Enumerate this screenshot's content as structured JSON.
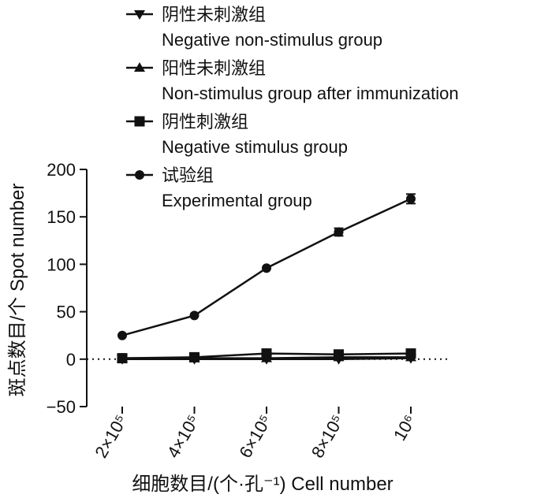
{
  "chart_data": {
    "type": "line",
    "xlabel": "细胞数目/(个·孔⁻¹)  Cell number",
    "ylabel": "斑点数目/个 Spot number",
    "categories": [
      "2×10⁵",
      "4×10⁵",
      "6×10⁵",
      "8×10⁵",
      "10⁶"
    ],
    "ylim": [
      -50,
      200
    ],
    "yticks": [
      -50,
      0,
      50,
      100,
      150,
      200
    ],
    "zero_line": "dotted",
    "grid": false,
    "legend_position": "top-left",
    "series": [
      {
        "name": "阴性未刺激组",
        "name_en": "Negative non-stimulus group",
        "marker": "triangle-down",
        "values": [
          0,
          0,
          0,
          0,
          1
        ]
      },
      {
        "name": "阳性未刺激组",
        "name_en": "Non-stimulus group after immunization",
        "marker": "triangle-up",
        "values": [
          1,
          1,
          1,
          2,
          2
        ]
      },
      {
        "name": "阴性刺激组",
        "name_en": "Negative stimulus group",
        "marker": "square",
        "values": [
          1,
          2,
          6,
          5,
          6
        ]
      },
      {
        "name": "试验组",
        "name_en": "Experimental group",
        "marker": "circle",
        "values": [
          25,
          46,
          96,
          134,
          169
        ],
        "errors": [
          0,
          0,
          0,
          4,
          5
        ]
      }
    ],
    "colors": {
      "line": "#111111",
      "marker": "#111111"
    }
  }
}
